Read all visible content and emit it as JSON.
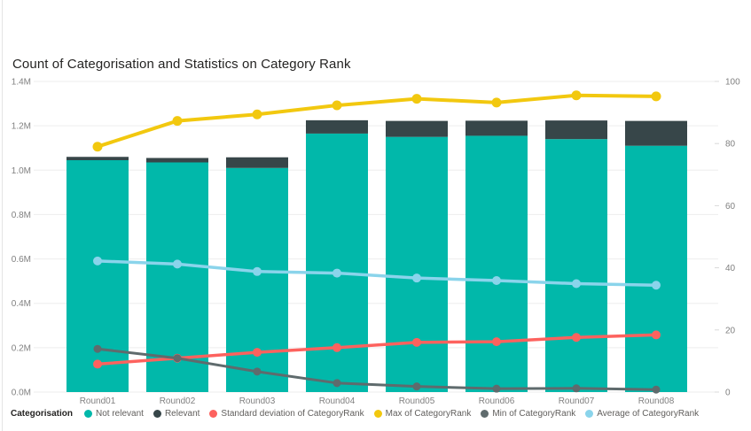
{
  "header": {
    "title": "Count of Categorisation and Statistics on Category Rank"
  },
  "chart_data": {
    "type": "combo: stacked bar + line, dual y-axes",
    "categories": [
      "Round01",
      "Round02",
      "Round03",
      "Round04",
      "Round05",
      "Round06",
      "Round07",
      "Round08"
    ],
    "bar_series": [
      {
        "name": "Not relevant",
        "color": "#01B8AA",
        "axis": "left",
        "values": [
          1045000,
          1035000,
          1010000,
          1165000,
          1150000,
          1155000,
          1140000,
          1110000
        ]
      },
      {
        "name": "Relevant",
        "color": "#374649",
        "axis": "left",
        "values": [
          15000,
          20000,
          48000,
          60000,
          72000,
          68000,
          84000,
          112000
        ]
      }
    ],
    "line_series": [
      {
        "name": "Standard deviation of CategoryRank",
        "color": "#FD625E",
        "axis": "right",
        "marker_r": 5,
        "stroke_w": 3.5,
        "values": [
          9.0,
          10.9,
          12.8,
          14.3,
          16.0,
          16.2,
          17.6,
          18.4
        ]
      },
      {
        "name": "Min of CategoryRank",
        "color": "#5F6B6D",
        "axis": "right",
        "marker_r": 4.5,
        "stroke_w": 3,
        "values": [
          13.9,
          10.9,
          6.6,
          2.9,
          1.8,
          1.1,
          1.2,
          0.8
        ]
      },
      {
        "name": "Max of CategoryRank",
        "color": "#F2C80F",
        "axis": "right",
        "marker_r": 5.5,
        "stroke_w": 4,
        "values": [
          79.0,
          87.3,
          89.4,
          92.3,
          94.4,
          93.2,
          95.5,
          95.2
        ]
      },
      {
        "name": "Average of CategoryRank",
        "color": "#8AD4EB",
        "axis": "right",
        "marker_r": 5,
        "stroke_w": 3.5,
        "values": [
          42.2,
          41.2,
          38.8,
          38.3,
          36.7,
          35.9,
          34.9,
          34.4
        ]
      }
    ],
    "left_axis": {
      "max": 1400000,
      "tick_values": [
        0,
        200000,
        400000,
        600000,
        800000,
        1000000,
        1200000,
        1400000
      ],
      "tick_labels": [
        "0.0M",
        "0.2M",
        "0.4M",
        "0.6M",
        "0.8M",
        "1.0M",
        "1.2M",
        "1.4M"
      ]
    },
    "right_axis": {
      "max": 100,
      "tick_values": [
        0,
        20,
        40,
        60,
        80,
        100
      ],
      "tick_labels": [
        "0",
        "20",
        "40",
        "60",
        "80",
        "100"
      ]
    },
    "legend": {
      "title": "Categorisation",
      "position": "bottom",
      "items": [
        {
          "label": "Not relevant",
          "color": "#01B8AA"
        },
        {
          "label": "Relevant",
          "color": "#374649"
        },
        {
          "label": "Standard deviation of CategoryRank",
          "color": "#FD625E"
        },
        {
          "label": "Max of CategoryRank",
          "color": "#F2C80F"
        },
        {
          "label": "Min of CategoryRank",
          "color": "#5F6B6D"
        },
        {
          "label": "Average of CategoryRank",
          "color": "#8AD4EB"
        }
      ]
    },
    "grid": {
      "horizontal": true,
      "color": "#EDEDED"
    },
    "styles": {
      "axis_text_color": "#808080",
      "tick_dash_color": "#D9D9D9"
    }
  }
}
